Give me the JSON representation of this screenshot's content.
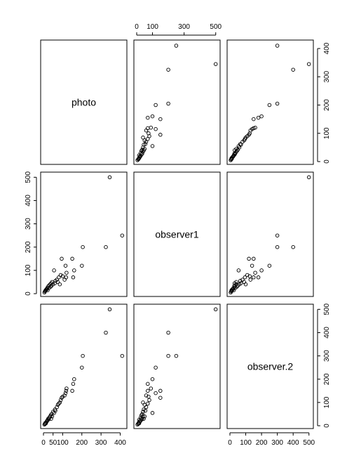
{
  "chart_data": {
    "type": "scatter",
    "plot": "scatterplot-matrix",
    "variables": [
      "photo",
      "observer1",
      "observer.2"
    ],
    "axes": {
      "photo": {
        "ticks": [
          0,
          100,
          200,
          300,
          400
        ],
        "tick_labels": [
          "0",
          "100",
          "200",
          "300",
          "400"
        ],
        "range": [
          0,
          420
        ]
      },
      "observer1": {
        "ticks": [
          0,
          100,
          200,
          300,
          400,
          500
        ],
        "tick_labels": [
          "0",
          "100",
          "200",
          "300",
          "400",
          "500"
        ],
        "range": [
          0,
          510
        ]
      },
      "observer.2": {
        "ticks": [
          0,
          100,
          200,
          300,
          400,
          500
        ],
        "tick_labels": [
          "0",
          "100",
          "200",
          "300",
          "400",
          "500"
        ],
        "range": [
          0,
          510
        ]
      }
    },
    "axis_placement": {
      "top": [
        {
          "col": 1,
          "var": "observer1",
          "labels": [
            "0",
            "100",
            "300",
            "500"
          ]
        }
      ],
      "right": [
        {
          "row": 0,
          "var": "photo",
          "labels": [
            "0",
            "100",
            "200",
            "300",
            "400"
          ]
        },
        {
          "row": 2,
          "var": "observer.2",
          "labels": [
            "0",
            "100",
            "200",
            "300",
            "400",
            "500"
          ]
        }
      ],
      "left": [
        {
          "row": 1,
          "var": "observer1",
          "labels": [
            "0",
            "100",
            "200",
            "300",
            "400",
            "500"
          ]
        }
      ],
      "bottom": [
        {
          "col": 0,
          "var": "photo",
          "labels": [
            "0",
            "50",
            "100",
            "200",
            "300",
            "400"
          ]
        },
        {
          "col": 2,
          "var": "observer.2",
          "labels": [
            "0",
            "100",
            "200",
            "300",
            "400",
            "500"
          ]
        }
      ]
    },
    "records": [
      [
        5,
        5,
        5
      ],
      [
        8,
        10,
        8
      ],
      [
        10,
        12,
        12
      ],
      [
        12,
        15,
        10
      ],
      [
        15,
        18,
        15
      ],
      [
        18,
        20,
        20
      ],
      [
        20,
        25,
        22
      ],
      [
        22,
        15,
        25
      ],
      [
        25,
        30,
        30
      ],
      [
        28,
        35,
        28
      ],
      [
        30,
        25,
        35
      ],
      [
        35,
        40,
        40
      ],
      [
        38,
        30,
        45
      ],
      [
        40,
        45,
        30
      ],
      [
        42,
        35,
        50
      ],
      [
        45,
        50,
        40
      ],
      [
        50,
        40,
        60
      ],
      [
        55,
        100,
        55
      ],
      [
        60,
        45,
        70
      ],
      [
        62,
        55,
        65
      ],
      [
        70,
        60,
        80
      ],
      [
        75,
        50,
        90
      ],
      [
        80,
        70,
        95
      ],
      [
        85,
        40,
        100
      ],
      [
        90,
        80,
        110
      ],
      [
        95,
        150,
        120
      ],
      [
        100,
        75,
        125
      ],
      [
        110,
        60,
        130
      ],
      [
        115,
        120,
        140
      ],
      [
        118,
        70,
        150
      ],
      [
        120,
        90,
        160
      ],
      [
        150,
        150,
        150
      ],
      [
        155,
        70,
        180
      ],
      [
        160,
        100,
        200
      ],
      [
        200,
        120,
        250
      ],
      [
        205,
        200,
        300
      ],
      [
        325,
        200,
        400
      ],
      [
        345,
        500,
        500
      ],
      [
        410,
        250,
        300
      ]
    ],
    "grid": false,
    "legend": "none"
  }
}
